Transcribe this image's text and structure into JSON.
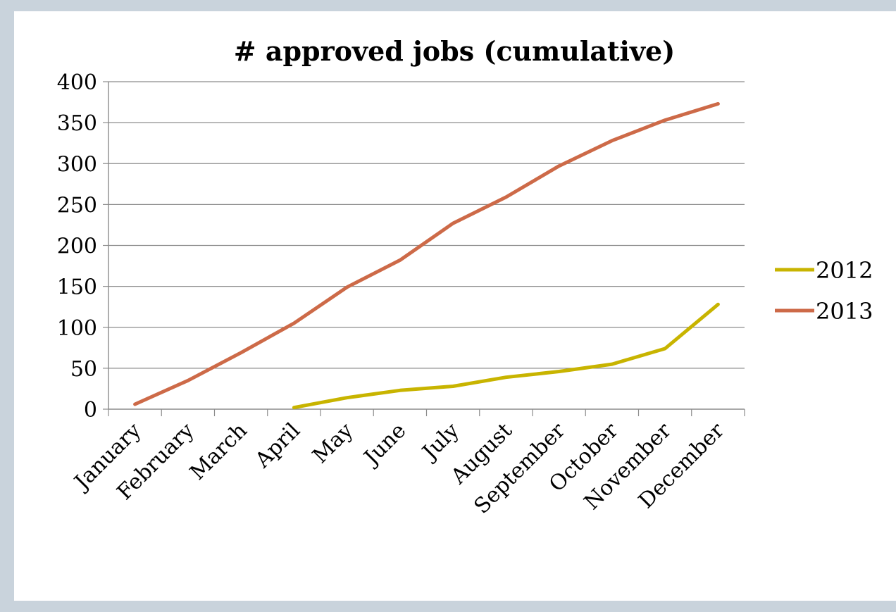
{
  "chart_data": {
    "type": "line",
    "title": "# approved jobs (cumulative)",
    "xlabel": "",
    "ylabel": "",
    "categories": [
      "January",
      "February",
      "March",
      "April",
      "May",
      "June",
      "July",
      "August",
      "September",
      "October",
      "November",
      "December"
    ],
    "ylim": [
      0,
      400
    ],
    "yticks": [
      0,
      50,
      100,
      150,
      200,
      250,
      300,
      350,
      400
    ],
    "grid": true,
    "legend_position": "right",
    "series": [
      {
        "name": "2012",
        "color": "#c8b400",
        "values": [
          null,
          null,
          null,
          2,
          14,
          23,
          28,
          39,
          46,
          55,
          74,
          128
        ]
      },
      {
        "name": "2013",
        "color": "#cd6a48",
        "values": [
          6,
          35,
          69,
          105,
          149,
          182,
          227,
          259,
          297,
          328,
          353,
          373
        ]
      }
    ]
  }
}
